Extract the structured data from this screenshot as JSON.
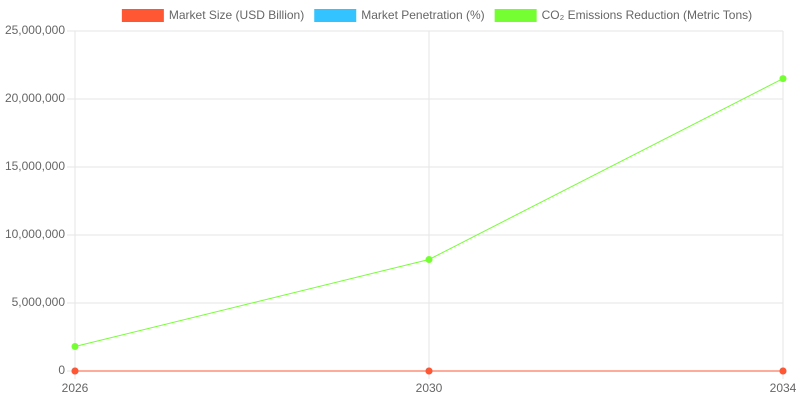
{
  "chart_data": {
    "type": "line",
    "categories": [
      "2026",
      "2030",
      "2034"
    ],
    "series": [
      {
        "name": "Market Size (USD Billion)",
        "color": "#ff5733",
        "values": [
          0,
          0,
          0
        ]
      },
      {
        "name": "Market Penetration (%)",
        "color": "#33c4ff",
        "values": [
          0,
          0,
          0
        ]
      },
      {
        "name": "CO₂ Emissions Reduction (Metric Tons)",
        "color": "#75ff33",
        "values": [
          1800000,
          8200000,
          21500000
        ]
      }
    ],
    "ylim": [
      0,
      25000000
    ],
    "yticks": [
      0,
      {
        "value": 5000000,
        "label": "5,000,000"
      },
      {
        "value": 10000000,
        "label": "10,000,000"
      },
      {
        "value": 15000000,
        "label": "15,000,000"
      },
      {
        "value": 20000000,
        "label": "20,000,000"
      },
      {
        "value": 25000000,
        "label": "25,000,000"
      }
    ],
    "grid": true,
    "legend": "top"
  }
}
